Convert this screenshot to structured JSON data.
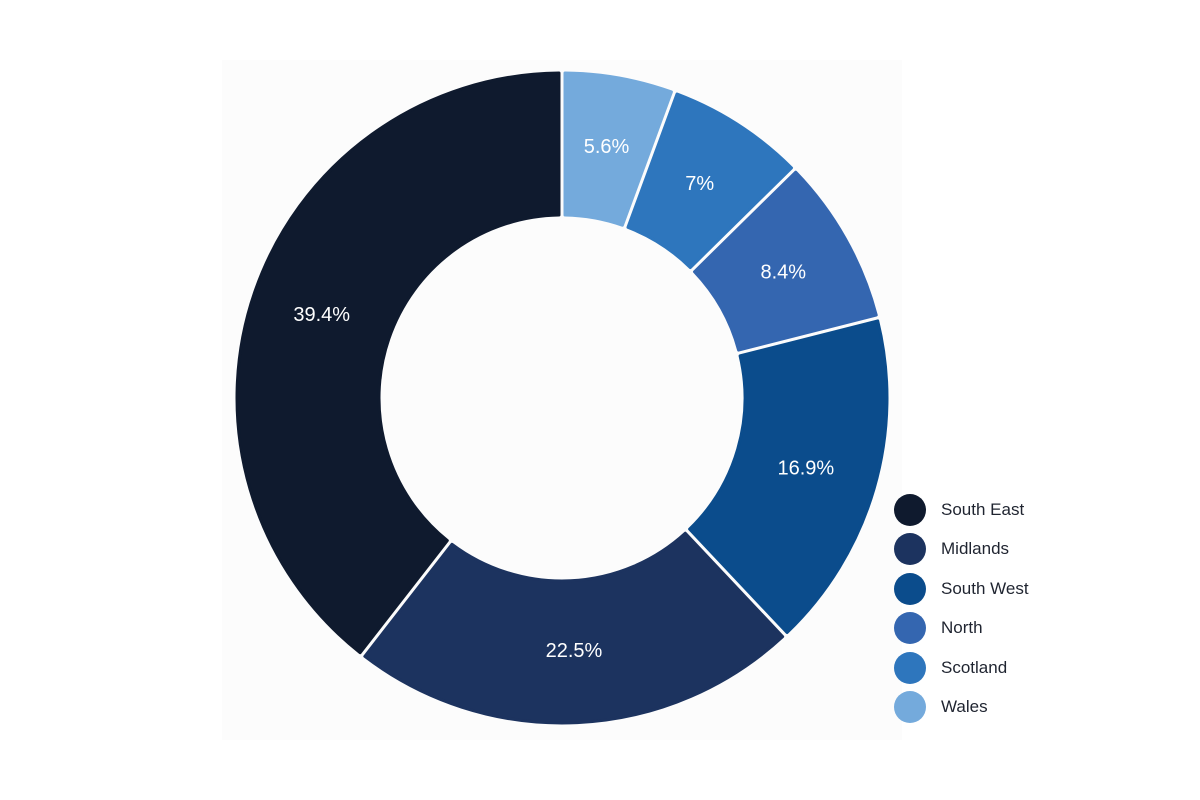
{
  "chart_data": {
    "type": "pie",
    "donut": true,
    "legend_position": "bottom-right",
    "categories": [
      "South East",
      "Midlands",
      "South West",
      "North",
      "Scotland",
      "Wales"
    ],
    "values": [
      39.4,
      22.5,
      16.9,
      8.4,
      7,
      5.6
    ],
    "labels": [
      "39.4%",
      "22.5%",
      "16.9%",
      "8.4%",
      "7%",
      "5.6%"
    ],
    "colors": [
      "#0f1a2e",
      "#1c335f",
      "#0b4c8c",
      "#3466b0",
      "#2e76bd",
      "#74aadc"
    ]
  }
}
